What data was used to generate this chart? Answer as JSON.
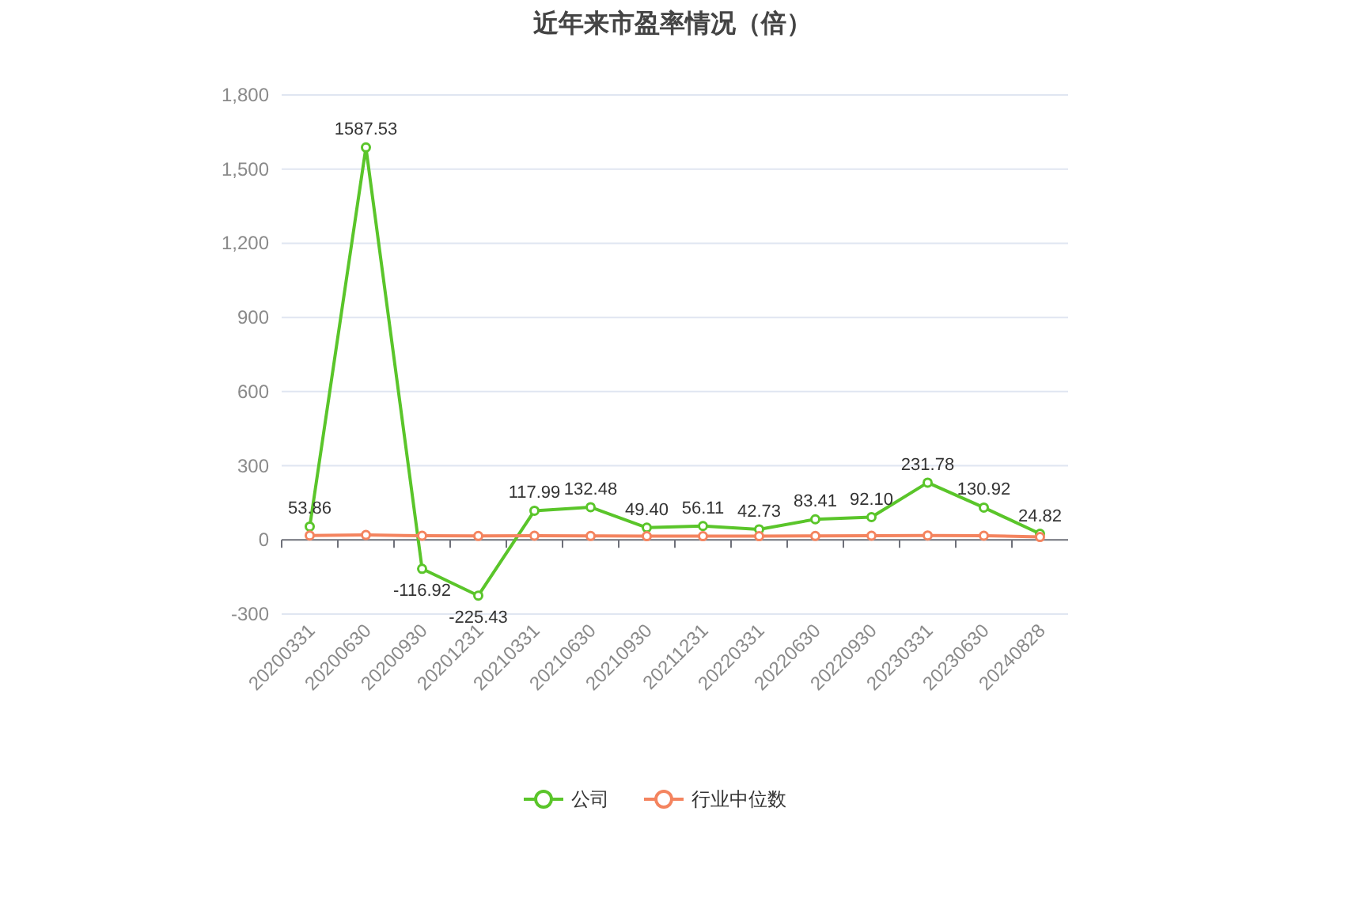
{
  "chart_data": {
    "type": "line",
    "title": "近年来市盈率情况（倍）",
    "categories": [
      "20200331",
      "20200630",
      "20200930",
      "20201231",
      "20210331",
      "20210630",
      "20210930",
      "20211231",
      "20220331",
      "20220630",
      "20220930",
      "20230331",
      "20230630",
      "20240828"
    ],
    "series": [
      {
        "name": "公司",
        "color": "#5ac52a",
        "values": [
          53.86,
          1587.53,
          -116.92,
          -225.43,
          117.99,
          132.48,
          49.4,
          56.11,
          42.73,
          83.41,
          92.1,
          231.78,
          130.92,
          24.82
        ],
        "value_labels": [
          "53.86",
          "1587.53",
          "-116.92",
          "-225.43",
          "117.99",
          "132.48",
          "49.40",
          "56.11",
          "42.73",
          "83.41",
          "92.10",
          "231.78",
          "130.92",
          "24.82"
        ]
      },
      {
        "name": "行业中位数",
        "color": "#f4845f",
        "values": [
          18,
          20,
          17,
          16,
          17,
          16,
          15,
          15,
          15,
          16,
          17,
          18,
          17,
          12
        ]
      }
    ],
    "ylim": [
      -300,
      1800
    ],
    "yticks": [
      {
        "value": -300,
        "label": "-300"
      },
      {
        "value": 0,
        "label": "0"
      },
      {
        "value": 300,
        "label": "300"
      },
      {
        "value": 600,
        "label": "600"
      },
      {
        "value": 900,
        "label": "900"
      },
      {
        "value": 1200,
        "label": "1,200"
      },
      {
        "value": 1500,
        "label": "1,500"
      },
      {
        "value": 1800,
        "label": "1,800"
      }
    ],
    "grid": "y",
    "legend": "bottom",
    "marker": "circle",
    "line_style": "solid"
  }
}
